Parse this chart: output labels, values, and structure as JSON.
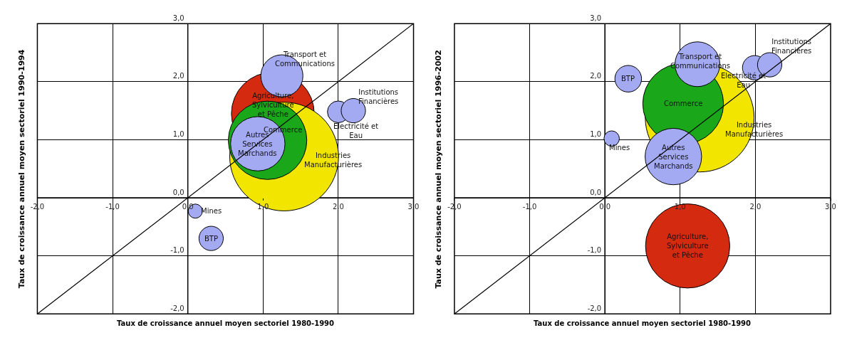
{
  "chart_data": [
    {
      "type": "bubble",
      "xlabel": "Taux de croissance annuel moyen sectoriel 1980-1990",
      "ylabel": "Taux de croissance annuel moyen sectoriel 1990-1994",
      "xlim": [
        -2,
        3
      ],
      "ylim": [
        -2,
        3
      ],
      "xticks": [
        {
          "value": -2,
          "label": "-2,0"
        },
        {
          "value": -1,
          "label": "-1,0"
        },
        {
          "value": 0,
          "label": "0,0"
        },
        {
          "value": 1,
          "label": "1,0"
        },
        {
          "value": 2,
          "label": "2,0"
        },
        {
          "value": 3,
          "label": "3,0"
        }
      ],
      "yticks": [
        {
          "value": -2,
          "label": "-2,0"
        },
        {
          "value": -1,
          "label": "-1,0"
        },
        {
          "value": 0,
          "label": "0,0"
        },
        {
          "value": 1,
          "label": "1,0"
        },
        {
          "value": 2,
          "label": "2,0"
        },
        {
          "value": 3,
          "label": "3,0"
        }
      ],
      "grid": true,
      "legend": false,
      "series": [
        {
          "name": "Agriculture,\nSylviculture\net Pêche",
          "color": "#d42a10",
          "x": [
            1.13
          ],
          "values": [
            1.45
          ],
          "sizes": [
            0.58
          ]
        },
        {
          "name": "Industries\nManufacturières",
          "color": "#f2e600",
          "x": [
            1.28
          ],
          "values": [
            0.71
          ],
          "sizes": [
            1
          ]
        },
        {
          "name": "Commerce",
          "color": "#1aa81a",
          "x": [
            1.06
          ],
          "values": [
            0.99
          ],
          "sizes": [
            0.52
          ]
        },
        {
          "name": "Autres\nServices\nMarchands",
          "color": "#a4aaf2",
          "x": [
            0.93
          ],
          "values": [
            0.93
          ],
          "sizes": [
            0.25
          ]
        },
        {
          "name": "Transport et\nCommunications",
          "color": "#a4aaf2",
          "x": [
            1.25
          ],
          "values": [
            2.1
          ],
          "sizes": [
            0.15
          ]
        },
        {
          "name": "Electricité et\nEau",
          "color": "#a4aaf2",
          "x": [
            2.0
          ],
          "values": [
            1.48
          ],
          "sizes": [
            0.04
          ]
        },
        {
          "name": "Institutions\nFinancières",
          "color": "#a4aaf2",
          "x": [
            2.2
          ],
          "values": [
            1.5
          ],
          "sizes": [
            0.05
          ]
        },
        {
          "name": "Mines",
          "color": "#a4aaf2",
          "x": [
            0.1
          ],
          "values": [
            -0.23
          ],
          "sizes": [
            0.017
          ]
        },
        {
          "name": "BTP",
          "color": "#a4aaf2",
          "x": [
            0.31
          ],
          "values": [
            -0.7
          ],
          "sizes": [
            0.05
          ]
        },
        {
          "type": "line",
          "color": "#000000",
          "x": [
            -2,
            3
          ],
          "values": [
            -2,
            3
          ]
        }
      ]
    },
    {
      "type": "bubble",
      "xlabel": "Taux de croissance annuel moyen sectoriel 1980-1990",
      "ylabel": "Taux de croissance annuel moyen sectoriel 1996-2002",
      "xlim": [
        -2,
        3
      ],
      "ylim": [
        -2,
        3
      ],
      "xticks": [
        {
          "value": -2,
          "label": "-2,0"
        },
        {
          "value": -1,
          "label": "-1,0"
        },
        {
          "value": 0,
          "label": "0,0"
        },
        {
          "value": 1,
          "label": "1,0"
        },
        {
          "value": 2,
          "label": "2,0"
        },
        {
          "value": 3,
          "label": "3,0"
        }
      ],
      "yticks": [
        {
          "value": -2,
          "label": "-2,0"
        },
        {
          "value": -1,
          "label": "-1,0"
        },
        {
          "value": 0,
          "label": "0,0"
        },
        {
          "value": 1,
          "label": "1,0"
        },
        {
          "value": 2,
          "label": "2,0"
        },
        {
          "value": 3,
          "label": "3,0"
        }
      ],
      "grid": true,
      "legend": false,
      "series": [
        {
          "name": "Agriculture,\nSylviculture\net Pêche",
          "color": "#d42a10",
          "x": [
            1.1
          ],
          "values": [
            -0.83
          ],
          "sizes": [
            0.6
          ]
        },
        {
          "name": "Industries\nManufacturières",
          "color": "#f2e600",
          "x": [
            1.26
          ],
          "values": [
            1.38
          ],
          "sizes": [
            1
          ]
        },
        {
          "name": "Commerce",
          "color": "#1aa81a",
          "x": [
            1.04
          ],
          "values": [
            1.62
          ],
          "sizes": [
            0.55
          ]
        },
        {
          "name": "Autres\nServices\nMarchands",
          "color": "#a4aaf2",
          "x": [
            0.91
          ],
          "values": [
            0.71
          ],
          "sizes": [
            0.27
          ]
        },
        {
          "name": "Transport et\nCommunications",
          "color": "#a4aaf2",
          "x": [
            1.23
          ],
          "values": [
            2.3
          ],
          "sizes": [
            0.17
          ]
        },
        {
          "name": "Electricité et\nEau",
          "color": "#a4aaf2",
          "x": [
            1.99
          ],
          "values": [
            2.24
          ],
          "sizes": [
            0.05
          ]
        },
        {
          "name": "Institutions\nFinancières",
          "color": "#a4aaf2",
          "x": [
            2.19
          ],
          "values": [
            2.29
          ],
          "sizes": [
            0.05
          ]
        },
        {
          "name": "Mines",
          "color": "#a4aaf2",
          "x": [
            0.09
          ],
          "values": [
            1.02
          ],
          "sizes": [
            0.02
          ]
        },
        {
          "name": "BTP",
          "color": "#a4aaf2",
          "x": [
            0.31
          ],
          "values": [
            2.05
          ],
          "sizes": [
            0.06
          ]
        },
        {
          "type": "line",
          "color": "#000000",
          "x": [
            -2,
            3
          ],
          "values": [
            -2,
            3
          ]
        }
      ]
    }
  ]
}
